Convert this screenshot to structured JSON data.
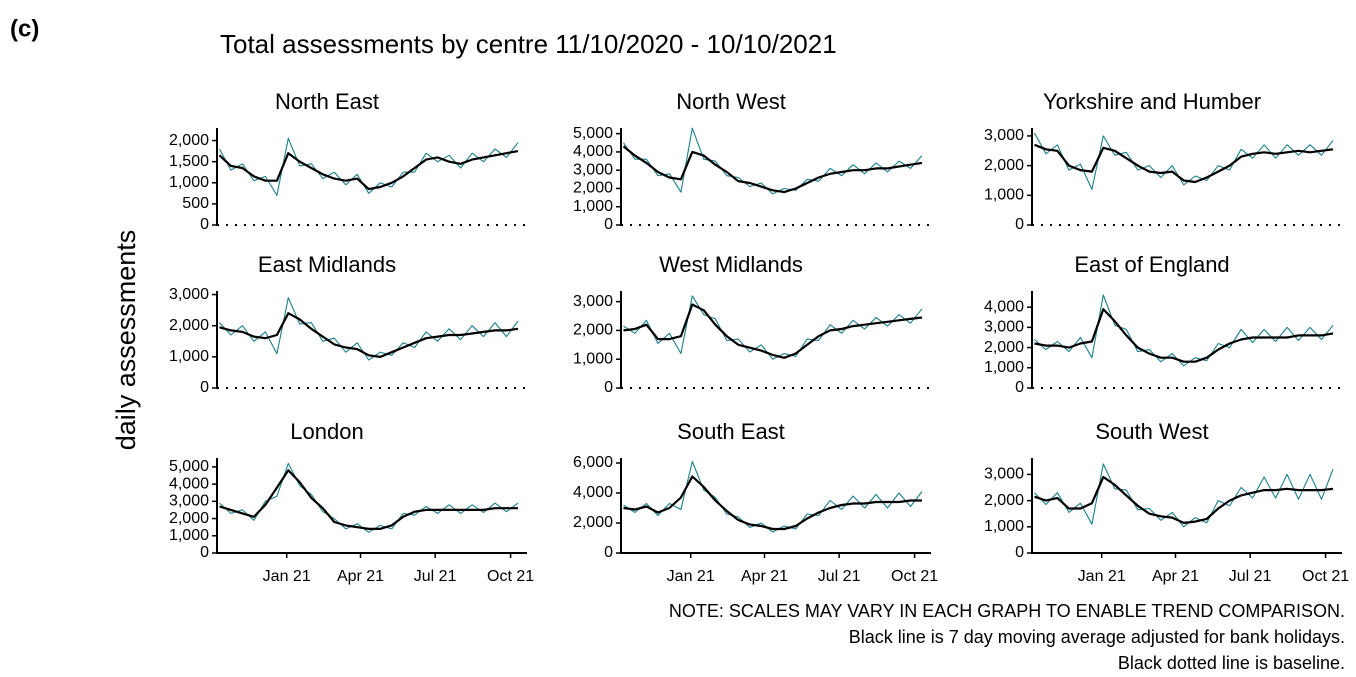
{
  "panel_label": "(c)",
  "title": "Total assessments by centre 11/10/2020 - 10/10/2021",
  "y_label": "daily assessments",
  "notes": [
    "NOTE: SCALES MAY VARY IN EACH GRAPH TO ENABLE TREND COMPARISON.",
    "Black line is 7 day moving average adjusted for bank holidays.",
    "Black dotted line is baseline."
  ],
  "chart_data": [
    {
      "type": "line",
      "title": "North East",
      "xlim": [
        -3,
        375
      ],
      "ylim": [
        0,
        2250
      ],
      "yticks": [
        0,
        500,
        {
          "value": 1000,
          "label": "1,000"
        },
        {
          "value": 1500,
          "label": "1,500"
        },
        {
          "value": 2000,
          "label": "2,000"
        }
      ],
      "x": [
        0,
        14,
        28,
        42,
        56,
        70,
        84,
        98,
        112,
        126,
        140,
        154,
        168,
        182,
        196,
        210,
        224,
        238,
        252,
        266,
        280,
        294,
        308,
        322,
        336,
        350,
        364
      ],
      "series": [
        {
          "color": "#1b7f8c",
          "values": [
            1800,
            1300,
            1450,
            1050,
            1150,
            700,
            2050,
            1400,
            1450,
            1100,
            1250,
            950,
            1200,
            750,
            1000,
            900,
            1250,
            1250,
            1700,
            1500,
            1650,
            1350,
            1700,
            1500,
            1800,
            1600,
            1950
          ]
        },
        {
          "color": "#000000",
          "values": [
            1650,
            1400,
            1350,
            1150,
            1050,
            1050,
            1700,
            1500,
            1350,
            1200,
            1100,
            1050,
            1100,
            850,
            900,
            1000,
            1150,
            1350,
            1550,
            1600,
            1500,
            1450,
            1550,
            1600,
            1650,
            1700,
            1750
          ]
        }
      ]
    },
    {
      "type": "line",
      "title": "North West",
      "xlim": [
        -3,
        375
      ],
      "ylim": [
        0,
        5200
      ],
      "yticks": [
        0,
        {
          "value": 1000,
          "label": "1,000"
        },
        {
          "value": 2000,
          "label": "2,000"
        },
        {
          "value": 3000,
          "label": "3,000"
        },
        {
          "value": 4000,
          "label": "4,000"
        },
        {
          "value": 5000,
          "label": "5,000"
        }
      ],
      "x": [
        0,
        14,
        28,
        42,
        56,
        70,
        84,
        98,
        112,
        126,
        140,
        154,
        168,
        182,
        196,
        210,
        224,
        238,
        252,
        266,
        280,
        294,
        308,
        322,
        336,
        350,
        364
      ],
      "series": [
        {
          "color": "#1b7f8c",
          "values": [
            4500,
            3600,
            3600,
            2700,
            2800,
            1800,
            5300,
            3600,
            3500,
            2700,
            2600,
            2100,
            2300,
            1700,
            2000,
            1900,
            2500,
            2400,
            3100,
            2700,
            3300,
            2800,
            3400,
            2900,
            3500,
            3100,
            3800
          ]
        },
        {
          "color": "#000000",
          "values": [
            4300,
            3800,
            3400,
            2900,
            2600,
            2500,
            4000,
            3800,
            3300,
            2900,
            2400,
            2300,
            2100,
            1900,
            1800,
            2000,
            2300,
            2600,
            2800,
            2900,
            3000,
            3000,
            3100,
            3100,
            3200,
            3300,
            3400
          ]
        }
      ]
    },
    {
      "type": "line",
      "title": "Yorkshire and Humber",
      "xlim": [
        -3,
        375
      ],
      "ylim": [
        0,
        3200
      ],
      "yticks": [
        0,
        {
          "value": 1000,
          "label": "1,000"
        },
        {
          "value": 2000,
          "label": "2,000"
        },
        {
          "value": 3000,
          "label": "3,000"
        }
      ],
      "x": [
        0,
        14,
        28,
        42,
        56,
        70,
        84,
        98,
        112,
        126,
        140,
        154,
        168,
        182,
        196,
        210,
        224,
        238,
        252,
        266,
        280,
        294,
        308,
        322,
        336,
        350,
        364
      ],
      "series": [
        {
          "color": "#1b7f8c",
          "values": [
            3100,
            2400,
            2700,
            1850,
            2050,
            1200,
            3000,
            2350,
            2450,
            1850,
            2000,
            1600,
            2000,
            1350,
            1650,
            1500,
            2000,
            1850,
            2550,
            2250,
            2700,
            2250,
            2700,
            2350,
            2700,
            2350,
            2850
          ]
        },
        {
          "color": "#000000",
          "values": [
            2700,
            2550,
            2500,
            2000,
            1850,
            1800,
            2600,
            2500,
            2250,
            2000,
            1800,
            1750,
            1800,
            1500,
            1450,
            1600,
            1800,
            2000,
            2300,
            2400,
            2450,
            2400,
            2450,
            2500,
            2450,
            2500,
            2550
          ]
        }
      ]
    },
    {
      "type": "line",
      "title": "East Midlands",
      "xlim": [
        -3,
        375
      ],
      "ylim": [
        0,
        3050
      ],
      "yticks": [
        0,
        {
          "value": 1000,
          "label": "1,000"
        },
        {
          "value": 2000,
          "label": "2,000"
        },
        {
          "value": 3000,
          "label": "3,000"
        }
      ],
      "x": [
        0,
        14,
        28,
        42,
        56,
        70,
        84,
        98,
        112,
        126,
        140,
        154,
        168,
        182,
        196,
        210,
        224,
        238,
        252,
        266,
        280,
        294,
        308,
        322,
        336,
        350,
        364
      ],
      "series": [
        {
          "color": "#1b7f8c",
          "values": [
            2100,
            1700,
            2000,
            1500,
            1800,
            1100,
            2900,
            2050,
            2100,
            1500,
            1600,
            1150,
            1450,
            900,
            1150,
            1050,
            1450,
            1300,
            1800,
            1500,
            1900,
            1550,
            2000,
            1650,
            2100,
            1650,
            2150
          ]
        },
        {
          "color": "#000000",
          "values": [
            1950,
            1850,
            1800,
            1650,
            1600,
            1700,
            2400,
            2200,
            1900,
            1650,
            1400,
            1300,
            1250,
            1050,
            1000,
            1150,
            1300,
            1450,
            1600,
            1650,
            1700,
            1700,
            1750,
            1800,
            1850,
            1850,
            1900
          ]
        }
      ]
    },
    {
      "type": "line",
      "title": "West Midlands",
      "xlim": [
        -3,
        375
      ],
      "ylim": [
        0,
        3300
      ],
      "yticks": [
        0,
        {
          "value": 1000,
          "label": "1,000"
        },
        {
          "value": 2000,
          "label": "2,000"
        },
        {
          "value": 3000,
          "label": "3,000"
        }
      ],
      "x": [
        0,
        14,
        28,
        42,
        56,
        70,
        84,
        98,
        112,
        126,
        140,
        154,
        168,
        182,
        196,
        210,
        224,
        238,
        252,
        266,
        280,
        294,
        308,
        322,
        336,
        350,
        364
      ],
      "series": [
        {
          "color": "#1b7f8c",
          "values": [
            2150,
            1900,
            2350,
            1550,
            1900,
            1200,
            3200,
            2550,
            2400,
            1650,
            1700,
            1250,
            1500,
            1000,
            1200,
            1100,
            1700,
            1650,
            2200,
            1900,
            2350,
            2050,
            2450,
            2150,
            2550,
            2250,
            2750
          ]
        },
        {
          "color": "#000000",
          "values": [
            2000,
            2050,
            2200,
            1700,
            1700,
            1800,
            2900,
            2700,
            2200,
            1800,
            1500,
            1400,
            1300,
            1150,
            1050,
            1200,
            1500,
            1800,
            2000,
            2050,
            2150,
            2200,
            2250,
            2300,
            2350,
            2400,
            2450
          ]
        }
      ]
    },
    {
      "type": "line",
      "title": "East of England",
      "xlim": [
        -3,
        375
      ],
      "ylim": [
        0,
        4700
      ],
      "yticks": [
        0,
        {
          "value": 1000,
          "label": "1,000"
        },
        {
          "value": 2000,
          "label": "2,000"
        },
        {
          "value": 3000,
          "label": "3,000"
        },
        {
          "value": 4000,
          "label": "4,000"
        }
      ],
      "x": [
        0,
        14,
        28,
        42,
        56,
        70,
        84,
        98,
        112,
        126,
        140,
        154,
        168,
        182,
        196,
        210,
        224,
        238,
        252,
        266,
        280,
        294,
        308,
        322,
        336,
        350,
        364
      ],
      "series": [
        {
          "color": "#1b7f8c",
          "values": [
            2400,
            1900,
            2300,
            1800,
            2500,
            1500,
            4600,
            3100,
            2900,
            1800,
            1900,
            1300,
            1700,
            1100,
            1500,
            1350,
            2200,
            2000,
            2900,
            2250,
            2900,
            2300,
            3000,
            2350,
            3000,
            2400,
            3100
          ]
        },
        {
          "color": "#000000",
          "values": [
            2200,
            2100,
            2100,
            2000,
            2200,
            2300,
            3900,
            3300,
            2600,
            2000,
            1700,
            1500,
            1500,
            1300,
            1300,
            1500,
            1900,
            2200,
            2400,
            2500,
            2500,
            2500,
            2500,
            2600,
            2600,
            2600,
            2700
          ]
        }
      ]
    },
    {
      "type": "line",
      "title": "London",
      "xlim": [
        -3,
        375
      ],
      "ylim": [
        0,
        5400
      ],
      "yticks": [
        0,
        {
          "value": 1000,
          "label": "1,000"
        },
        {
          "value": 2000,
          "label": "2,000"
        },
        {
          "value": 3000,
          "label": "3,000"
        },
        {
          "value": 4000,
          "label": "4,000"
        },
        {
          "value": 5000,
          "label": "5,000"
        }
      ],
      "xticks": [
        {
          "value": 82,
          "label": "Jan 21"
        },
        {
          "value": 172,
          "label": "Apr 21"
        },
        {
          "value": 263,
          "label": "Jul 21"
        },
        {
          "value": 355,
          "label": "Oct 21"
        }
      ],
      "x": [
        0,
        14,
        28,
        42,
        56,
        70,
        84,
        98,
        112,
        126,
        140,
        154,
        168,
        182,
        196,
        210,
        224,
        238,
        252,
        266,
        280,
        294,
        308,
        322,
        336,
        350,
        364
      ],
      "series": [
        {
          "color": "#1b7f8c",
          "values": [
            2900,
            2300,
            2500,
            1900,
            3000,
            3300,
            5200,
            3900,
            3400,
            2400,
            2000,
            1400,
            1700,
            1200,
            1600,
            1400,
            2300,
            2200,
            2700,
            2300,
            2800,
            2300,
            2800,
            2350,
            2900,
            2400,
            2900
          ]
        },
        {
          "color": "#000000",
          "values": [
            2700,
            2500,
            2300,
            2100,
            2800,
            3800,
            4800,
            4100,
            3200,
            2600,
            1800,
            1600,
            1500,
            1400,
            1400,
            1600,
            2100,
            2400,
            2500,
            2500,
            2500,
            2500,
            2500,
            2500,
            2600,
            2600,
            2600
          ]
        }
      ]
    },
    {
      "type": "line",
      "title": "South East",
      "xlim": [
        -3,
        375
      ],
      "ylim": [
        0,
        6200
      ],
      "yticks": [
        0,
        {
          "value": 2000,
          "label": "2,000"
        },
        {
          "value": 4000,
          "label": "4,000"
        },
        {
          "value": 6000,
          "label": "6,000"
        }
      ],
      "xticks": [
        {
          "value": 82,
          "label": "Jan 21"
        },
        {
          "value": 172,
          "label": "Apr 21"
        },
        {
          "value": 263,
          "label": "Jul 21"
        },
        {
          "value": 355,
          "label": "Oct 21"
        }
      ],
      "x": [
        0,
        14,
        28,
        42,
        56,
        70,
        84,
        98,
        112,
        126,
        140,
        154,
        168,
        182,
        196,
        210,
        224,
        238,
        252,
        266,
        280,
        294,
        308,
        322,
        336,
        350,
        364
      ],
      "series": [
        {
          "color": "#1b7f8c",
          "values": [
            3200,
            2700,
            3300,
            2500,
            3300,
            2900,
            6100,
            4200,
            3700,
            2600,
            2400,
            1700,
            2000,
            1400,
            1800,
            1600,
            2600,
            2500,
            3500,
            2900,
            3800,
            3000,
            3900,
            3000,
            4000,
            3100,
            4100
          ]
        },
        {
          "color": "#000000",
          "values": [
            3000,
            2900,
            3100,
            2700,
            3000,
            3700,
            5100,
            4400,
            3500,
            2800,
            2200,
            1900,
            1800,
            1600,
            1600,
            1800,
            2300,
            2700,
            3000,
            3200,
            3300,
            3300,
            3400,
            3400,
            3400,
            3500,
            3500
          ]
        }
      ]
    },
    {
      "type": "line",
      "title": "South West",
      "xlim": [
        -3,
        375
      ],
      "ylim": [
        0,
        3550
      ],
      "yticks": [
        0,
        {
          "value": 1000,
          "label": "1,000"
        },
        {
          "value": 2000,
          "label": "2,000"
        },
        {
          "value": 3000,
          "label": "3,000"
        }
      ],
      "xticks": [
        {
          "value": 82,
          "label": "Jan 21"
        },
        {
          "value": 172,
          "label": "Apr 21"
        },
        {
          "value": 263,
          "label": "Jul 21"
        },
        {
          "value": 355,
          "label": "Oct 21"
        }
      ],
      "x": [
        0,
        14,
        28,
        42,
        56,
        70,
        84,
        98,
        112,
        126,
        140,
        154,
        168,
        182,
        196,
        210,
        224,
        238,
        252,
        266,
        280,
        294,
        308,
        322,
        336,
        350,
        364
      ],
      "series": [
        {
          "color": "#1b7f8c",
          "values": [
            2300,
            1850,
            2300,
            1550,
            1900,
            1100,
            3400,
            2450,
            2400,
            1650,
            1700,
            1250,
            1550,
            1000,
            1350,
            1150,
            2000,
            1800,
            2500,
            2100,
            2900,
            2100,
            3000,
            2050,
            3000,
            2050,
            3200
          ]
        },
        {
          "color": "#000000",
          "values": [
            2150,
            2000,
            2100,
            1700,
            1700,
            1900,
            2900,
            2600,
            2200,
            1800,
            1500,
            1400,
            1350,
            1150,
            1200,
            1300,
            1700,
            2000,
            2200,
            2300,
            2400,
            2400,
            2450,
            2400,
            2400,
            2400,
            2450
          ]
        }
      ]
    }
  ]
}
